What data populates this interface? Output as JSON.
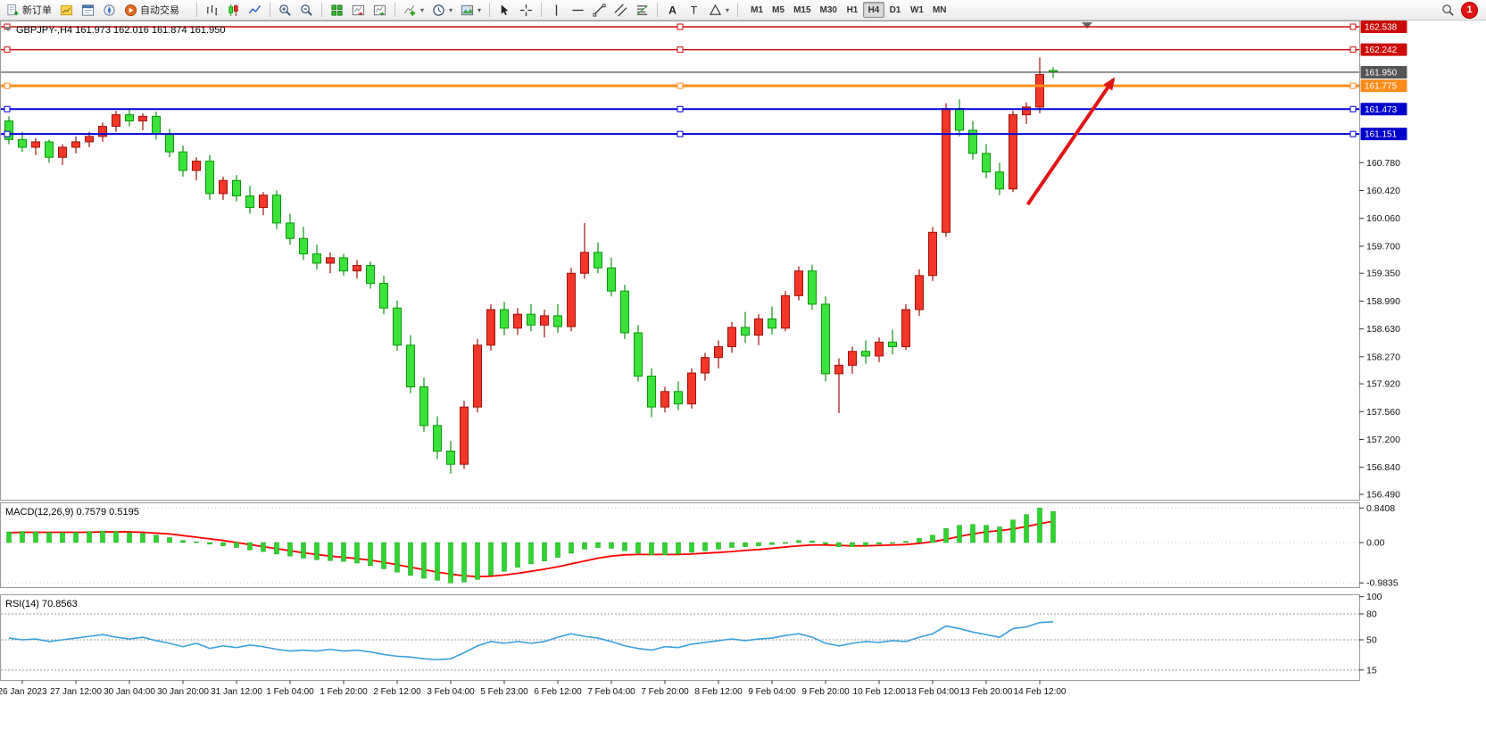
{
  "toolbar": {
    "new_order": "新订单",
    "autotrade": "自动交易",
    "timeframes": [
      {
        "label": "M1"
      },
      {
        "label": "M5"
      },
      {
        "label": "M15"
      },
      {
        "label": "M30"
      },
      {
        "label": "H1"
      },
      {
        "label": "H4",
        "active": true
      },
      {
        "label": "D1"
      },
      {
        "label": "W1"
      },
      {
        "label": "MN"
      }
    ],
    "notification_count": "1"
  },
  "chart_data": {
    "type": "candlestick",
    "symbol": "GBPJPY-",
    "timeframe": "H4",
    "info_line": "GBPJPY-,H4 161.973 162.016 161.874 161.950",
    "colors": {
      "up": "#f2372a",
      "up_stroke": "#a01208",
      "down": "#3be23b",
      "down_stroke": "#0c960c"
    },
    "ohlc": [
      [
        161.32,
        161.38,
        161.02,
        161.08
      ],
      [
        161.08,
        161.18,
        160.92,
        160.98
      ],
      [
        160.98,
        161.1,
        160.88,
        161.05
      ],
      [
        161.05,
        161.08,
        160.78,
        160.85
      ],
      [
        160.85,
        161.02,
        160.75,
        160.98
      ],
      [
        160.98,
        161.12,
        160.9,
        161.05
      ],
      [
        161.05,
        161.18,
        160.98,
        161.12
      ],
      [
        161.12,
        161.3,
        161.05,
        161.25
      ],
      [
        161.25,
        161.45,
        161.18,
        161.4
      ],
      [
        161.4,
        161.47,
        161.25,
        161.32
      ],
      [
        161.32,
        161.42,
        161.2,
        161.38
      ],
      [
        161.38,
        161.44,
        161.08,
        161.15
      ],
      [
        161.15,
        161.22,
        160.85,
        160.92
      ],
      [
        160.92,
        161.0,
        160.6,
        160.68
      ],
      [
        160.68,
        160.85,
        160.55,
        160.8
      ],
      [
        160.8,
        160.88,
        160.3,
        160.38
      ],
      [
        160.38,
        160.6,
        160.3,
        160.55
      ],
      [
        160.55,
        160.62,
        160.28,
        160.35
      ],
      [
        160.35,
        160.48,
        160.12,
        160.2
      ],
      [
        160.2,
        160.4,
        160.1,
        160.36
      ],
      [
        160.36,
        160.42,
        159.92,
        160.0
      ],
      [
        160.0,
        160.12,
        159.72,
        159.8
      ],
      [
        159.8,
        159.95,
        159.52,
        159.6
      ],
      [
        159.6,
        159.72,
        159.4,
        159.48
      ],
      [
        159.48,
        159.62,
        159.35,
        159.55
      ],
      [
        159.55,
        159.6,
        159.32,
        159.38
      ],
      [
        159.38,
        159.52,
        159.28,
        159.45
      ],
      [
        159.45,
        159.5,
        159.15,
        159.22
      ],
      [
        159.22,
        159.32,
        158.82,
        158.9
      ],
      [
        158.9,
        159.0,
        158.35,
        158.42
      ],
      [
        158.42,
        158.55,
        157.8,
        157.88
      ],
      [
        157.88,
        158.0,
        157.3,
        157.38
      ],
      [
        157.38,
        157.5,
        156.95,
        157.05
      ],
      [
        157.05,
        157.18,
        156.76,
        156.88
      ],
      [
        156.88,
        157.7,
        156.82,
        157.62
      ],
      [
        157.62,
        158.5,
        157.55,
        158.42
      ],
      [
        158.42,
        158.95,
        158.35,
        158.88
      ],
      [
        158.88,
        158.98,
        158.55,
        158.64
      ],
      [
        158.64,
        158.9,
        158.55,
        158.82
      ],
      [
        158.82,
        158.95,
        158.6,
        158.68
      ],
      [
        158.68,
        158.88,
        158.52,
        158.8
      ],
      [
        158.8,
        158.95,
        158.58,
        158.66
      ],
      [
        158.66,
        159.42,
        158.6,
        159.35
      ],
      [
        159.35,
        160.0,
        159.28,
        159.62
      ],
      [
        159.62,
        159.75,
        159.35,
        159.42
      ],
      [
        159.42,
        159.55,
        159.05,
        159.12
      ],
      [
        159.12,
        159.2,
        158.5,
        158.58
      ],
      [
        158.58,
        158.68,
        157.95,
        158.02
      ],
      [
        158.02,
        158.12,
        157.49,
        157.62
      ],
      [
        157.62,
        157.88,
        157.55,
        157.82
      ],
      [
        157.82,
        157.95,
        157.58,
        157.66
      ],
      [
        157.66,
        158.12,
        157.6,
        158.06
      ],
      [
        158.06,
        158.32,
        157.96,
        158.26
      ],
      [
        158.26,
        158.48,
        158.12,
        158.4
      ],
      [
        158.4,
        158.72,
        158.32,
        158.65
      ],
      [
        158.65,
        158.85,
        158.45,
        158.55
      ],
      [
        158.55,
        158.82,
        158.42,
        158.76
      ],
      [
        158.76,
        158.92,
        158.56,
        158.64
      ],
      [
        158.64,
        159.12,
        158.6,
        159.06
      ],
      [
        159.06,
        159.44,
        159.0,
        159.38
      ],
      [
        159.38,
        159.46,
        158.88,
        158.95
      ],
      [
        158.95,
        159.05,
        157.95,
        158.05
      ],
      [
        158.05,
        158.25,
        157.54,
        158.16
      ],
      [
        158.16,
        158.4,
        158.05,
        158.34
      ],
      [
        158.34,
        158.48,
        158.18,
        158.28
      ],
      [
        158.28,
        158.52,
        158.2,
        158.46
      ],
      [
        158.46,
        158.62,
        158.3,
        158.4
      ],
      [
        158.4,
        158.95,
        158.36,
        158.88
      ],
      [
        158.88,
        159.4,
        158.8,
        159.32
      ],
      [
        159.32,
        159.95,
        159.25,
        159.88
      ],
      [
        159.88,
        161.55,
        159.82,
        161.48
      ],
      [
        161.48,
        161.6,
        161.12,
        161.2
      ],
      [
        161.2,
        161.32,
        160.82,
        160.9
      ],
      [
        160.9,
        161.02,
        160.58,
        160.66
      ],
      [
        160.66,
        160.78,
        160.36,
        160.44
      ],
      [
        160.44,
        161.45,
        160.4,
        161.4
      ],
      [
        161.4,
        161.56,
        161.28,
        161.5
      ],
      [
        161.5,
        162.14,
        161.42,
        161.92
      ],
      [
        161.973,
        162.016,
        161.874,
        161.95
      ]
    ],
    "time_labels": [
      "26 Jan 2023",
      "27 Jan 12:00",
      "30 Jan 04:00",
      "30 Jan 20:00",
      "31 Jan 12:00",
      "1 Feb 04:00",
      "1 Feb 20:00",
      "2 Feb 12:00",
      "3 Feb 04:00",
      "5 Feb 23:00",
      "6 Feb 12:00",
      "7 Feb 04:00",
      "7 Feb 20:00",
      "8 Feb 12:00",
      "9 Feb 04:00",
      "9 Feb 20:00",
      "10 Feb 12:00",
      "13 Feb 04:00",
      "13 Feb 20:00",
      "14 Feb 12:00"
    ],
    "time_label_first_bar": 1,
    "time_label_step": 4,
    "price_ticks": {
      "labels": [
        "160.780",
        "160.420",
        "160.060",
        "159.700",
        "159.350",
        "158.990",
        "158.630",
        "158.270",
        "157.920",
        "157.560",
        "157.200",
        "156.840",
        "156.490"
      ],
      "values": [
        160.78,
        160.42,
        160.06,
        159.7,
        159.35,
        158.99,
        158.63,
        158.27,
        157.92,
        157.56,
        157.2,
        156.84,
        156.49
      ]
    },
    "lines": [
      {
        "price": 162.538,
        "label": "162.538",
        "color": "#cc0a0a",
        "width": 1.4,
        "badge": "#cc0a0a",
        "handles": true
      },
      {
        "price": 162.242,
        "label": "162.242",
        "color": "#cc0a0a",
        "width": 1.4,
        "badge": "#cc0a0a",
        "handles": true
      },
      {
        "price": 161.95,
        "label": "161.950",
        "color": "#3a3a3a",
        "width": 1.2,
        "badge": "#555555",
        "handles": false,
        "kind": "current-price"
      },
      {
        "price": 161.775,
        "label": "161.775",
        "color": "#ff8c1a",
        "width": 3,
        "badge": "#ff8c1a",
        "handles": true
      },
      {
        "price": 161.473,
        "label": "161.473",
        "color": "#0000dd",
        "width": 2,
        "badge": "#0000cc",
        "handles": true
      },
      {
        "price": 161.151,
        "label": "161.151",
        "color": "#0000dd",
        "width": 2,
        "badge": "#0000cc",
        "handles": true
      }
    ],
    "arrow": {
      "from_bar": 76.1,
      "from_price": 160.24,
      "to_bar": 82.5,
      "to_price": 161.857,
      "color": "#e01414"
    },
    "macd": {
      "name": "MACD(12,26,9)",
      "values_text": "0.7579 0.5195",
      "axis_labels": [
        "0.8408",
        "0.00",
        "-0.9835"
      ],
      "axis_values": [
        0.8408,
        0,
        -0.9835
      ],
      "histogram": [
        0.26,
        0.27,
        0.26,
        0.25,
        0.24,
        0.25,
        0.27,
        0.28,
        0.27,
        0.24,
        0.22,
        0.18,
        0.12,
        0.05,
        0.02,
        -0.04,
        -0.08,
        -0.12,
        -0.18,
        -0.22,
        -0.28,
        -0.33,
        -0.38,
        -0.42,
        -0.44,
        -0.46,
        -0.5,
        -0.56,
        -0.64,
        -0.72,
        -0.8,
        -0.87,
        -0.92,
        -0.9835,
        -0.96,
        -0.9,
        -0.8,
        -0.7,
        -0.6,
        -0.52,
        -0.45,
        -0.36,
        -0.26,
        -0.16,
        -0.12,
        -0.14,
        -0.2,
        -0.26,
        -0.3,
        -0.3,
        -0.28,
        -0.24,
        -0.2,
        -0.16,
        -0.12,
        -0.1,
        -0.08,
        -0.05,
        0.0,
        0.05,
        0.04,
        -0.04,
        -0.1,
        -0.1,
        -0.07,
        -0.04,
        -0.02,
        0.03,
        0.1,
        0.18,
        0.34,
        0.42,
        0.44,
        0.42,
        0.38,
        0.55,
        0.68,
        0.8408,
        0.7579
      ],
      "signal": [
        0.24,
        0.25,
        0.25,
        0.25,
        0.25,
        0.25,
        0.25,
        0.26,
        0.26,
        0.26,
        0.25,
        0.23,
        0.21,
        0.17,
        0.13,
        0.09,
        0.05,
        0.0,
        -0.05,
        -0.1,
        -0.15,
        -0.2,
        -0.25,
        -0.29,
        -0.33,
        -0.36,
        -0.39,
        -0.43,
        -0.48,
        -0.54,
        -0.6,
        -0.66,
        -0.72,
        -0.77,
        -0.81,
        -0.83,
        -0.82,
        -0.79,
        -0.75,
        -0.7,
        -0.65,
        -0.59,
        -0.52,
        -0.45,
        -0.38,
        -0.33,
        -0.3,
        -0.29,
        -0.29,
        -0.29,
        -0.29,
        -0.28,
        -0.26,
        -0.24,
        -0.22,
        -0.19,
        -0.17,
        -0.14,
        -0.11,
        -0.08,
        -0.06,
        -0.06,
        -0.07,
        -0.08,
        -0.08,
        -0.07,
        -0.06,
        -0.05,
        -0.02,
        0.02,
        0.08,
        0.15,
        0.21,
        0.26,
        0.29,
        0.33,
        0.39,
        0.46,
        0.5195
      ]
    },
    "rsi": {
      "name": "RSI(14)",
      "value_text": "70.8563",
      "levels": [
        {
          "label": "100",
          "value": 100
        },
        {
          "label": "80",
          "value": 80
        },
        {
          "label": "50",
          "value": 50
        },
        {
          "label": "15",
          "value": 15
        }
      ],
      "values": [
        52,
        50,
        51,
        48,
        50,
        52,
        54,
        56,
        53,
        51,
        53,
        49,
        46,
        42,
        46,
        40,
        43,
        41,
        44,
        42,
        39,
        37,
        38,
        37,
        39,
        37,
        38,
        36,
        33,
        31,
        30,
        28,
        27,
        28,
        35,
        43,
        48,
        46,
        48,
        46,
        48,
        53,
        57,
        54,
        52,
        48,
        43,
        40,
        38,
        42,
        41,
        45,
        47,
        49,
        51,
        49,
        51,
        52,
        55,
        57,
        53,
        46,
        43,
        46,
        48,
        47,
        49,
        48,
        53,
        57,
        66,
        63,
        59,
        56,
        53,
        63,
        65,
        70,
        70.86
      ]
    }
  }
}
